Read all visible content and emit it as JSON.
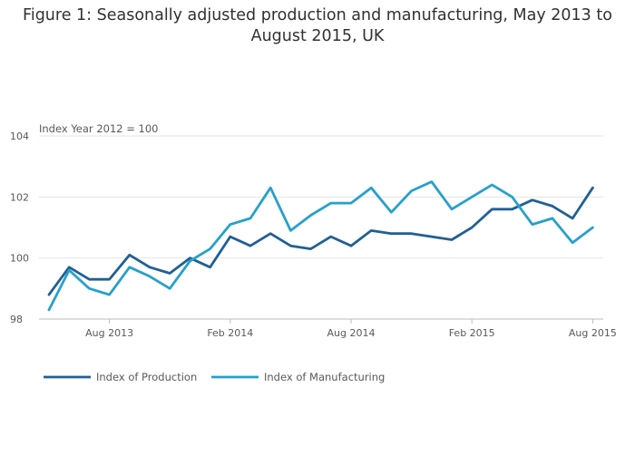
{
  "title_line1": "Figure 1: Seasonally adjusted production and manufacturing, May 2013 to",
  "title_line2": "August 2015, UK",
  "chart_data": {
    "type": "line",
    "title": "Figure 1: Seasonally adjusted production and manufacturing, May 2013 to August 2015, UK",
    "ylabel": "Index Year 2012 = 100",
    "xlabel": "",
    "x": [
      "2013-05",
      "2013-06",
      "2013-07",
      "2013-08",
      "2013-09",
      "2013-10",
      "2013-11",
      "2013-12",
      "2014-01",
      "2014-02",
      "2014-03",
      "2014-04",
      "2014-05",
      "2014-06",
      "2014-07",
      "2014-08",
      "2014-09",
      "2014-10",
      "2014-11",
      "2014-12",
      "2015-01",
      "2015-02",
      "2015-03",
      "2015-04",
      "2015-05",
      "2015-06",
      "2015-07",
      "2015-08"
    ],
    "x_ticks": [
      {
        "x": "2013-08",
        "label": "Aug 2013"
      },
      {
        "x": "2014-02",
        "label": "Feb 2014"
      },
      {
        "x": "2014-08",
        "label": "Aug 2014"
      },
      {
        "x": "2015-02",
        "label": "Feb 2015"
      },
      {
        "x": "2015-08",
        "label": "Aug 2015"
      }
    ],
    "y_ticks": [
      "98",
      "100",
      "102",
      "104"
    ],
    "ylim": [
      98,
      104
    ],
    "grid": true,
    "legend_position": "bottom",
    "series": [
      {
        "name": "Index of Production",
        "color": "#206095",
        "values": [
          98.8,
          99.7,
          99.3,
          99.3,
          100.1,
          99.7,
          99.5,
          100.0,
          99.7,
          100.7,
          100.4,
          100.8,
          100.4,
          100.3,
          100.7,
          100.4,
          100.9,
          100.8,
          100.8,
          100.7,
          100.6,
          101.0,
          101.6,
          101.6,
          101.9,
          101.7,
          101.3,
          102.3
        ]
      },
      {
        "name": "Index of Manufacturing",
        "color": "#27A0CC",
        "values": [
          98.3,
          99.6,
          99.0,
          98.8,
          99.7,
          99.4,
          99.0,
          99.9,
          100.3,
          101.1,
          101.3,
          102.3,
          100.9,
          101.4,
          101.8,
          101.8,
          102.3,
          101.5,
          102.2,
          102.5,
          101.6,
          102.0,
          102.4,
          102.0,
          101.1,
          101.3,
          100.5,
          101.0
        ]
      }
    ]
  }
}
